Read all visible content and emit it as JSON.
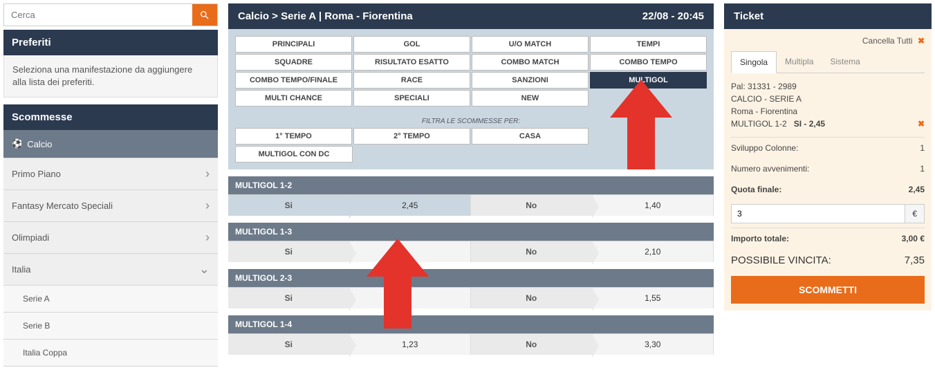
{
  "colors": {
    "accent": "#e86c1a",
    "dark": "#2b3a4f",
    "muted": "#6d7a8a",
    "filter_bg": "#cad7e0",
    "arrow": "#e3332b"
  },
  "search": {
    "placeholder": "Cerca"
  },
  "favorites": {
    "title": "Preferiti",
    "hint": "Seleziona una manifestazione da aggiungere alla lista dei preferiti."
  },
  "bets_panel": {
    "title": "Scommesse",
    "items": [
      {
        "label": "Calcio",
        "active": true,
        "icon": "ball"
      },
      {
        "label": "Primo Piano",
        "chev": "›"
      },
      {
        "label": "Fantasy Mercato Speciali",
        "chev": "›"
      },
      {
        "label": "Olimpiadi",
        "chev": "›"
      },
      {
        "label": "Italia",
        "chev": "⌄",
        "open": true
      },
      {
        "label": "Serie A",
        "sub": true
      },
      {
        "label": "Serie B",
        "sub": true
      },
      {
        "label": "Italia Coppa",
        "sub": true
      }
    ]
  },
  "match": {
    "breadcrumb": "Calcio > Serie A | Roma - Fiorentina",
    "datetime": "22/08 - 20:45"
  },
  "tabs": [
    [
      "PRINCIPALI",
      "GOL",
      "U/O MATCH",
      "TEMPI"
    ],
    [
      "SQUADRE",
      "RISULTATO ESATTO",
      "COMBO MATCH",
      "COMBO TEMPO"
    ],
    [
      "COMBO TEMPO/FINALE",
      "RACE",
      "SANZIONI",
      "MULTIGOL"
    ],
    [
      "MULTI CHANCE",
      "SPECIALI",
      "NEW",
      ""
    ]
  ],
  "tabs_selected": "MULTIGOL",
  "filter_label": "FILTRA LE SCOMMESSE PER:",
  "filters_row1": [
    "1° TEMPO",
    "2° TEMPO",
    "CASA",
    ""
  ],
  "filters_row2": [
    "MULTIGOL CON DC"
  ],
  "markets": [
    {
      "name": "MULTIGOL 1-2",
      "si": "Si",
      "si_odds": "2,45",
      "no": "No",
      "no_odds": "1,40",
      "si_selected": true
    },
    {
      "name": "MULTIGOL 1-3",
      "si": "Si",
      "si_odds": "",
      "no": "No",
      "no_odds": "2,10"
    },
    {
      "name": "MULTIGOL 2-3",
      "si": "Si",
      "si_odds": "",
      "no": "No",
      "no_odds": "1,55"
    },
    {
      "name": "MULTIGOL 1-4",
      "si": "Si",
      "si_odds": "1,23",
      "no": "No",
      "no_odds": "3,30"
    }
  ],
  "ticket": {
    "title": "Ticket",
    "cancel_all": "Cancella Tutti",
    "tabs": [
      "Singola",
      "Multipla",
      "Sistema"
    ],
    "active_tab": "Singola",
    "pal": "Pal: 31331 - 2989",
    "league": "CALCIO - SERIE A",
    "event": "Roma - Fiorentina",
    "selection": "MULTIGOL 1-2",
    "selection_side": "SI",
    "selection_odds": "2,45",
    "rows": {
      "sviluppo_label": "Sviluppo Colonne:",
      "sviluppo_val": "1",
      "numavv_label": "Numero avvenimenti:",
      "numavv_val": "1",
      "quota_label": "Quota finale:",
      "quota_val": "2,45",
      "stake_val": "3",
      "stake_cur": "€",
      "importo_label": "Importo totale:",
      "importo_val": "3,00 €",
      "win_label": "POSSIBILE VINCITA:",
      "win_val": "7,35"
    },
    "bet_btn": "SCOMMETTI"
  }
}
